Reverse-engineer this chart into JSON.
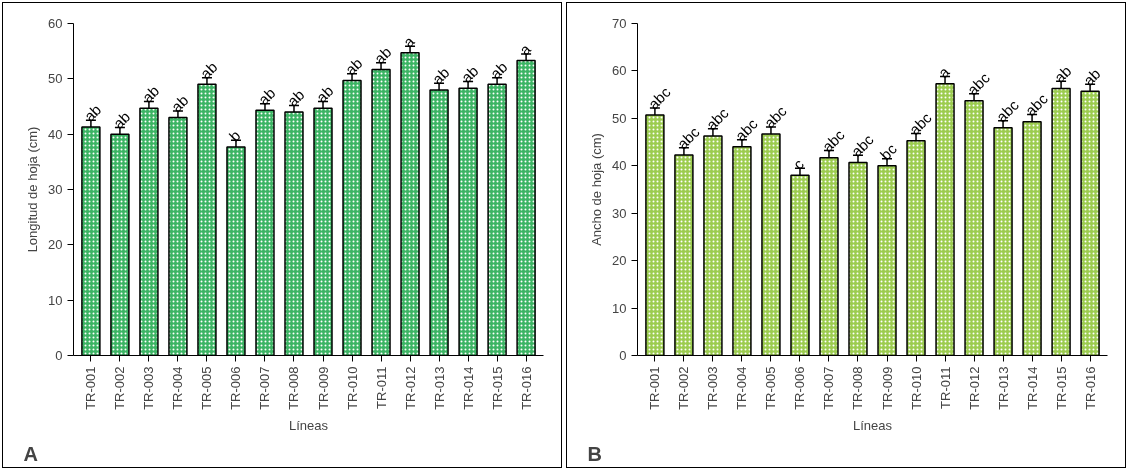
{
  "chart_data": [
    {
      "type": "bar",
      "xlabel": "Líneas",
      "ylabel": "Longitud de hoja (cm)",
      "annotations": [
        "A"
      ],
      "categories": [
        "TR-001",
        "TR-002",
        "TR-003",
        "TR-004",
        "TR-005",
        "TR-006",
        "TR-007",
        "TR-008",
        "TR-009",
        "TR-010",
        "TR-011",
        "TR-012",
        "TR-013",
        "TR-014",
        "TR-015",
        "TR-016"
      ],
      "series": [
        {
          "color": "#3cb464",
          "values": [
            41.3,
            40.0,
            44.7,
            43.0,
            49.0,
            37.7,
            44.3,
            44.0,
            44.7,
            49.7,
            51.7,
            54.7,
            48.0,
            48.3,
            49.0,
            53.3
          ],
          "errors": [
            1.2,
            1.2,
            1.2,
            1.2,
            1.2,
            1.2,
            1.2,
            1.2,
            1.2,
            1.2,
            1.2,
            1.2,
            1.2,
            1.2,
            1.2,
            1.2
          ],
          "value_labels": [
            "ab",
            "ab",
            "ab",
            "ab",
            "ab",
            "b",
            "ab",
            "ab",
            "ab",
            "ab",
            "ab",
            "a",
            "ab",
            "ab",
            "ab",
            "a"
          ]
        }
      ],
      "ylim": [
        0,
        60
      ],
      "yticks": [
        0,
        10,
        20,
        30,
        40,
        50,
        60
      ],
      "grid": false
    },
    {
      "type": "bar",
      "xlabel": "Líneas",
      "ylabel": "Ancho de hoja (cm)",
      "annotations": [
        "B"
      ],
      "categories": [
        "TR-001",
        "TR-002",
        "TR-003",
        "TR-004",
        "TR-005",
        "TR-006",
        "TR-007",
        "TR-008",
        "TR-009",
        "TR-010",
        "TR-011",
        "TR-012",
        "TR-013",
        "TR-014",
        "TR-015",
        "TR-016"
      ],
      "series": [
        {
          "color": "#9ccc50",
          "values": [
            50.7,
            42.3,
            46.3,
            44.0,
            46.7,
            38.0,
            41.7,
            40.7,
            40.0,
            45.3,
            57.3,
            53.7,
            48.0,
            49.3,
            56.3,
            55.7
          ],
          "errors": [
            1.5,
            1.5,
            1.5,
            1.5,
            1.5,
            1.5,
            1.5,
            1.5,
            1.5,
            1.5,
            1.5,
            1.5,
            1.5,
            1.5,
            1.5,
            1.5
          ],
          "value_labels": [
            "abc",
            "abc",
            "abc",
            "abc",
            "abc",
            "c",
            "abc",
            "abc",
            "bc",
            "abc",
            "a",
            "abc",
            "abc",
            "abc",
            "ab",
            "ab"
          ]
        }
      ],
      "ylim": [
        0,
        70
      ],
      "yticks": [
        0,
        10,
        20,
        30,
        40,
        50,
        60,
        70
      ],
      "grid": false
    }
  ]
}
